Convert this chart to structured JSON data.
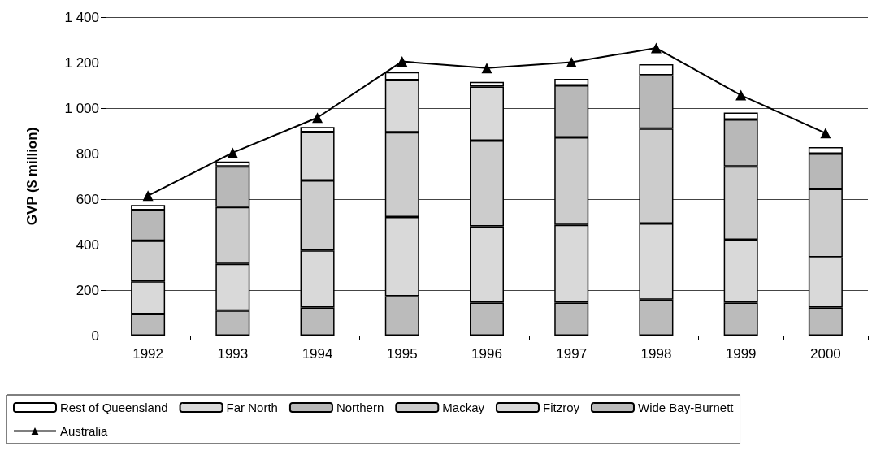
{
  "chart_data": {
    "type": "bar",
    "stacked": true,
    "ylabel": "GVP ($ million)",
    "categories": [
      "1992",
      "1993",
      "1994",
      "1995",
      "1996",
      "1997",
      "1998",
      "1999",
      "2000"
    ],
    "series": [
      {
        "name": "Wide Bay-Burnett",
        "color": "#bbbbbb",
        "values": [
          95,
          110,
          123,
          173,
          145,
          145,
          158,
          145,
          123
        ]
      },
      {
        "name": "Fitzroy",
        "color": "#d9d9d9",
        "values": [
          143,
          205,
          251,
          348,
          335,
          342,
          335,
          276,
          222
        ]
      },
      {
        "name": "Mackay",
        "color": "#cccccc",
        "values": [
          179,
          250,
          308,
          373,
          377,
          384,
          417,
          323,
          300
        ]
      },
      {
        "name": "Northern",
        "color": "#b8b8b8",
        "values": [
          135,
          179,
          null,
          null,
          null,
          229,
          235,
          206,
          155
        ]
      },
      {
        "name": "Far North",
        "color": "#d9d9d9",
        "values": [
          null,
          null,
          213,
          229,
          238,
          null,
          null,
          null,
          null
        ]
      },
      {
        "name": "Rest of Queensland",
        "color": "#ffffff",
        "values": [
          22,
          21,
          22,
          35,
          20,
          29,
          48,
          30,
          29
        ]
      },
      {
        "name": "Australia",
        "type": "line",
        "color": "#000000",
        "marker": "triangle",
        "line_style": "solid",
        "values": [
          615,
          804,
          958,
          1205,
          1176,
          1202,
          1264,
          1057,
          890
        ]
      }
    ],
    "ylim": [
      0,
      1400
    ],
    "yticks": [
      0,
      200,
      400,
      600,
      800,
      {
        "value": 1000,
        "label": "1 000"
      },
      {
        "value": 1200,
        "label": "1 200"
      },
      {
        "value": 1400,
        "label": "1 400"
      }
    ],
    "grid": "y",
    "legend": "bottom"
  }
}
